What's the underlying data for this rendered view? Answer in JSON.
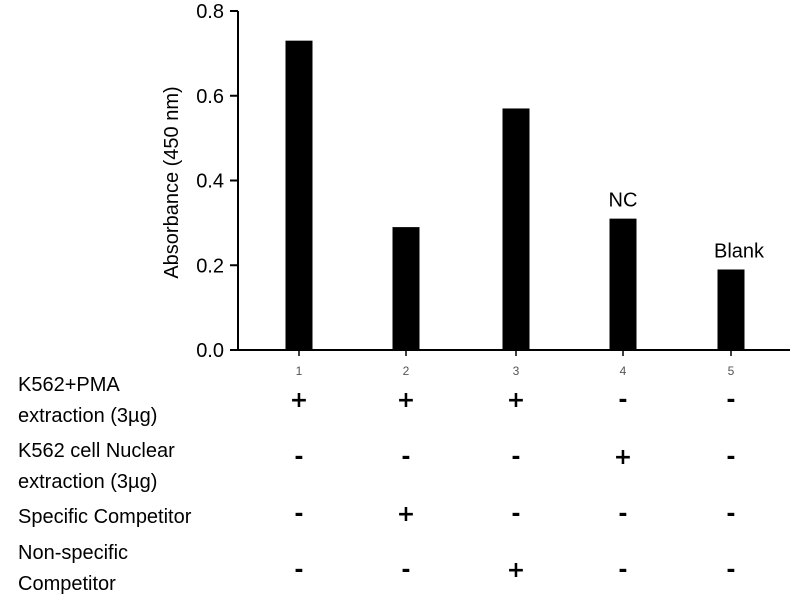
{
  "chart_data": {
    "type": "bar",
    "categories": [
      "1",
      "2",
      "3",
      "4",
      "5"
    ],
    "values": [
      0.73,
      0.29,
      0.57,
      0.31,
      0.19
    ],
    "ylabel": "Absorbance (450 nm)",
    "ylim": [
      0,
      0.8
    ],
    "yticks": [
      "0.0",
      "0.2",
      "0.4",
      "0.6",
      "0.8"
    ],
    "bar_color": "#000000",
    "annotations": [
      {
        "bar": 4,
        "text": "NC"
      },
      {
        "bar": 5,
        "text": "Blank"
      }
    ]
  },
  "conditions": [
    {
      "label_lines": [
        "K562+PMA",
        "extraction (3µg)"
      ],
      "signs": [
        "+",
        "+",
        "+",
        "-",
        "-"
      ]
    },
    {
      "label_lines": [
        "K562 cell Nuclear",
        "extraction (3µg)"
      ],
      "signs": [
        "-",
        "-",
        "-",
        "+",
        "-"
      ]
    },
    {
      "label_lines": [
        "Specific Competitor"
      ],
      "signs": [
        "-",
        "+",
        "-",
        "-",
        "-"
      ]
    },
    {
      "label_lines": [
        "Non-specific",
        "Competitor"
      ],
      "signs": [
        "-",
        "-",
        "+",
        "-",
        "-"
      ]
    }
  ]
}
